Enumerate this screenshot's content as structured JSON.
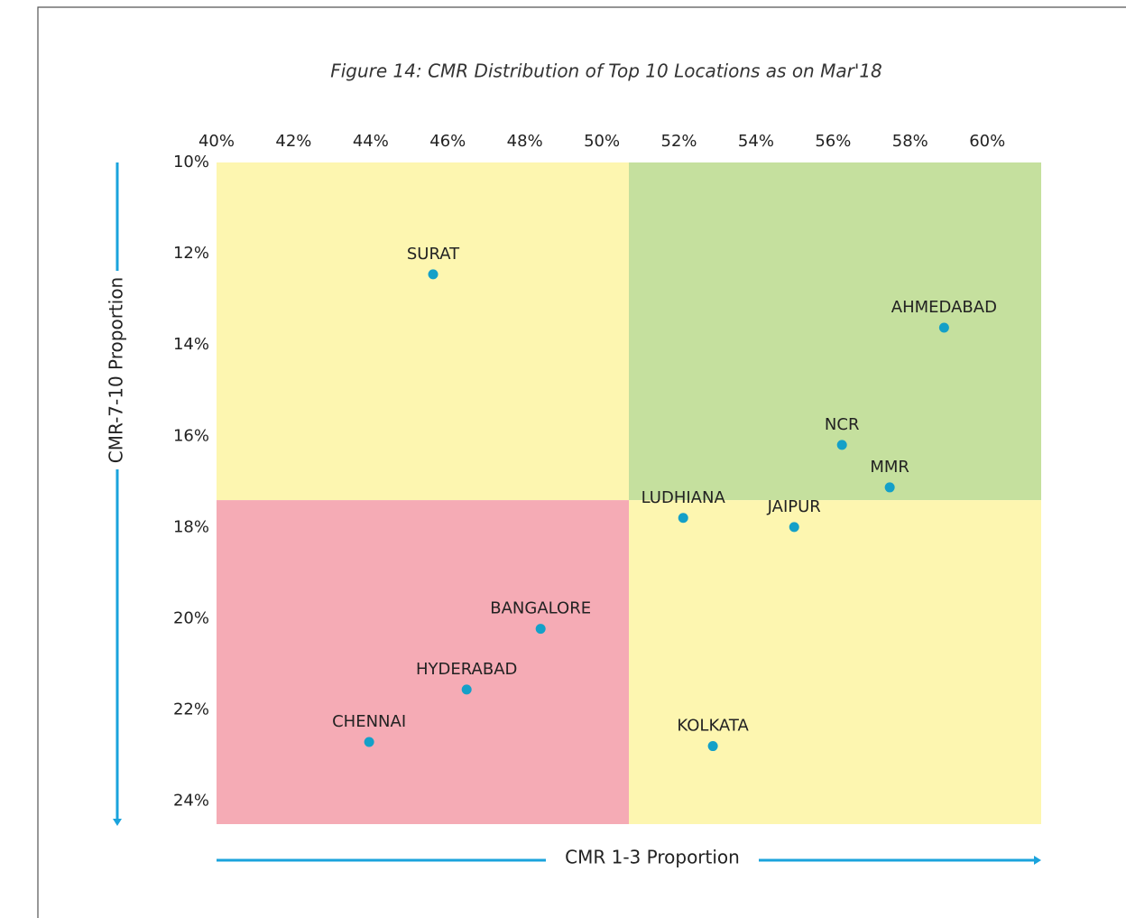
{
  "chart_data": {
    "type": "scatter",
    "title": "Figure 14: CMR Distribution of Top 10 Locations as on Mar'18",
    "x_label": "CMR 1-3 Proportion",
    "y_label": "CMR-7-10 Proportion",
    "xlim": [
      40,
      61.4
    ],
    "ylim": [
      10,
      24.5
    ],
    "y_inverted": true,
    "xticks": [
      {
        "value": 40,
        "label": "40%"
      },
      {
        "value": 42,
        "label": "42%"
      },
      {
        "value": 44,
        "label": "44%"
      },
      {
        "value": 46,
        "label": "46%"
      },
      {
        "value": 48,
        "label": "48%"
      },
      {
        "value": 50,
        "label": "50%"
      },
      {
        "value": 52,
        "label": "52%"
      },
      {
        "value": 54,
        "label": "54%"
      },
      {
        "value": 56,
        "label": "56%"
      },
      {
        "value": 58,
        "label": "58%"
      },
      {
        "value": 60,
        "label": "60%"
      }
    ],
    "yticks": [
      {
        "value": 10,
        "label": "10%"
      },
      {
        "value": 12,
        "label": "12%"
      },
      {
        "value": 14,
        "label": "14%"
      },
      {
        "value": 16,
        "label": "16%"
      },
      {
        "value": 18,
        "label": "18%"
      },
      {
        "value": 20,
        "label": "20%"
      },
      {
        "value": 22,
        "label": "22%"
      },
      {
        "value": 24,
        "label": "24%"
      }
    ],
    "quadrant_split": [
      50.7,
      17.4
    ],
    "quadrant_colors": {
      "top_left": "#fdf6b0",
      "top_right": "#c5e09e",
      "bottom_left": "#f5abb5",
      "bottom_right": "#fdf6b0"
    },
    "axis_color": "#1aa3dc",
    "color": "#14a0c8",
    "labels": [
      "SURAT",
      "AHMEDABAD",
      "NCR",
      "MMR",
      "LUDHIANA",
      "JAIPUR",
      "BANGALORE",
      "HYDERABAD",
      "CHENNAI",
      "KOLKATA"
    ],
    "x": [
      45.62,
      58.88,
      56.23,
      57.47,
      52.11,
      54.99,
      48.41,
      46.49,
      43.96,
      52.88
    ],
    "values": [
      12.45,
      13.62,
      16.19,
      17.12,
      17.79,
      17.99,
      20.22,
      21.55,
      22.7,
      22.79
    ]
  }
}
